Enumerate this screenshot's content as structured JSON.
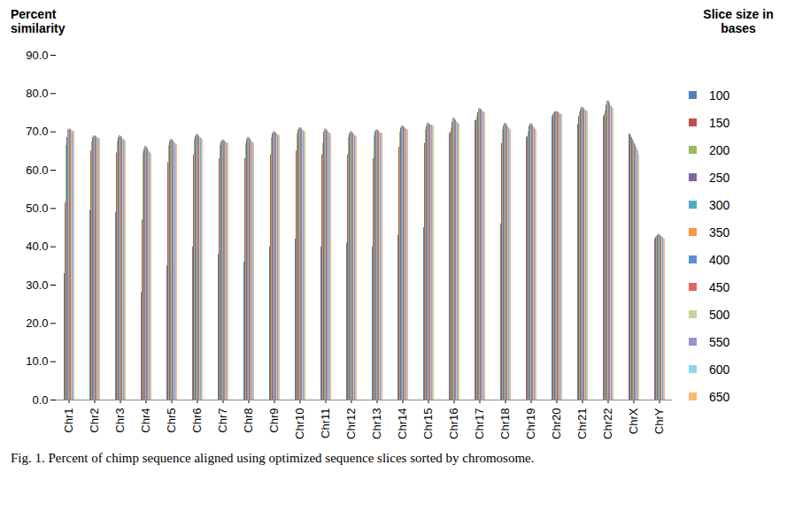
{
  "chart_data": {
    "type": "bar",
    "caption": "Fig. 1. Percent of chimp sequence aligned using optimized sequence slices sorted by chromosome.",
    "y_label": "Percent similarity",
    "legend_title": "Slice size in bases",
    "legend": "right",
    "grid": false,
    "ylim": [
      0,
      90
    ],
    "yticks": [
      {
        "value": 0,
        "label": "0.0"
      },
      {
        "value": 10,
        "label": "10.0"
      },
      {
        "value": 20,
        "label": "20.0"
      },
      {
        "value": 30,
        "label": "30.0"
      },
      {
        "value": 40,
        "label": "40.0"
      },
      {
        "value": 50,
        "label": "50.0"
      },
      {
        "value": 60,
        "label": "60.0"
      },
      {
        "value": 70,
        "label": "70.0"
      },
      {
        "value": 80,
        "label": "80.0"
      },
      {
        "value": 90,
        "label": "90.0"
      }
    ],
    "categories": [
      "Chr1",
      "Chr2",
      "Chr3",
      "Chr4",
      "Chr5",
      "Chr6",
      "Chr7",
      "Chr8",
      "Chr9",
      "Chr10",
      "Chr11",
      "Chr12",
      "Chr13",
      "Chr14",
      "Chr15",
      "Chr16",
      "Chr17",
      "Chr18",
      "Chr19",
      "Chr20",
      "Chr21",
      "Chr22",
      "ChrX",
      "ChrY"
    ],
    "series": [
      {
        "name": "100",
        "color": "#4f81bd",
        "values": [
          33,
          49.5,
          49,
          28,
          35,
          40,
          38,
          36,
          40,
          42,
          40,
          41,
          40,
          43,
          45,
          69.5,
          73,
          46,
          68.5,
          74,
          72,
          74,
          69.5,
          42
        ]
      },
      {
        "name": "150",
        "color": "#c0504d",
        "values": [
          51.5,
          65,
          64.5,
          47,
          62,
          64,
          63,
          63,
          64,
          65,
          64,
          64,
          63,
          66,
          67,
          70,
          73,
          67,
          68.8,
          74.5,
          74,
          74.5,
          69.3,
          42.5
        ]
      },
      {
        "name": "200",
        "color": "#9bbb59",
        "values": [
          66.5,
          67.5,
          67.5,
          64.5,
          66.5,
          68,
          66.5,
          67,
          68.5,
          69.5,
          67,
          68.5,
          69,
          70,
          70.5,
          71,
          74,
          70.5,
          70,
          75,
          75,
          75.5,
          69,
          42.8
        ]
      },
      {
        "name": "250",
        "color": "#8064a2",
        "values": [
          68.5,
          68.5,
          68.5,
          65.5,
          67.5,
          68.8,
          67.3,
          68,
          69.5,
          70.5,
          70,
          69.5,
          70,
          71,
          71.5,
          72.5,
          75,
          71.5,
          71.5,
          75.2,
          75.8,
          77,
          68.5,
          43
        ]
      },
      {
        "name": "300",
        "color": "#4bacc6",
        "values": [
          70.5,
          68.9,
          69,
          66.2,
          68,
          69.3,
          67.8,
          68.5,
          70,
          71,
          70.7,
          70,
          70.5,
          71.5,
          72.2,
          73.5,
          76,
          72.2,
          72.1,
          75.3,
          76.4,
          78,
          68,
          43.3
        ]
      },
      {
        "name": "350",
        "color": "#f79646",
        "values": [
          70.8,
          69,
          69,
          66.3,
          68.1,
          69.4,
          67.9,
          68.6,
          70.1,
          71.1,
          70.8,
          70.1,
          70.6,
          71.6,
          72.3,
          73.7,
          76.1,
          72.3,
          72.2,
          75.3,
          76.5,
          78.2,
          67.5,
          43.2
        ]
      },
      {
        "name": "400",
        "color": "#5b8fd6",
        "values": [
          70.7,
          68.9,
          68.8,
          66,
          67.9,
          69.2,
          67.8,
          68.4,
          69.9,
          71,
          70.6,
          69.9,
          70.4,
          71.4,
          72.1,
          73.4,
          76,
          72.1,
          72,
          75.2,
          76.3,
          78,
          67,
          43
        ]
      },
      {
        "name": "450",
        "color": "#e06666",
        "values": [
          70.6,
          68.7,
          68.5,
          65.6,
          67.6,
          68.9,
          67.6,
          68,
          69.7,
          70.8,
          70.3,
          69.6,
          70.2,
          71.2,
          71.9,
          73,
          75.8,
          71.7,
          71.7,
          75.1,
          76,
          77.5,
          66.5,
          42.8
        ]
      },
      {
        "name": "500",
        "color": "#c3d69b",
        "values": [
          70.4,
          68.5,
          68.2,
          65.2,
          67.3,
          68.6,
          67.4,
          67.7,
          69.5,
          70.5,
          70,
          69.3,
          69.9,
          71,
          71.8,
          72.7,
          75.5,
          71.3,
          71.3,
          74.9,
          75.8,
          77,
          66,
          42.6
        ]
      },
      {
        "name": "550",
        "color": "#9f8fd0",
        "values": [
          70.2,
          68.4,
          68,
          64.8,
          67,
          68.4,
          67.2,
          67.4,
          69.3,
          70.3,
          69.8,
          69.1,
          69.7,
          70.8,
          71.7,
          72.4,
          75.3,
          71,
          71,
          74.7,
          75.6,
          76.6,
          65.5,
          42.4
        ]
      },
      {
        "name": "600",
        "color": "#8ed8ee",
        "values": [
          70,
          68.3,
          67.8,
          64.5,
          66.8,
          68.2,
          67.1,
          67.2,
          69.1,
          70.1,
          69.6,
          68.9,
          69.6,
          70.6,
          71.6,
          72.2,
          75.1,
          70.7,
          70.7,
          74.6,
          75.4,
          76.3,
          65,
          42.2
        ]
      },
      {
        "name": "650",
        "color": "#f9b970",
        "values": [
          70.3,
          68.2,
          67.5,
          64.2,
          66.7,
          68,
          67,
          67,
          69,
          70,
          69.5,
          68.8,
          69.5,
          70.5,
          71.5,
          72,
          75,
          70.5,
          70.5,
          74.5,
          75.3,
          76,
          64,
          42
        ]
      }
    ]
  }
}
